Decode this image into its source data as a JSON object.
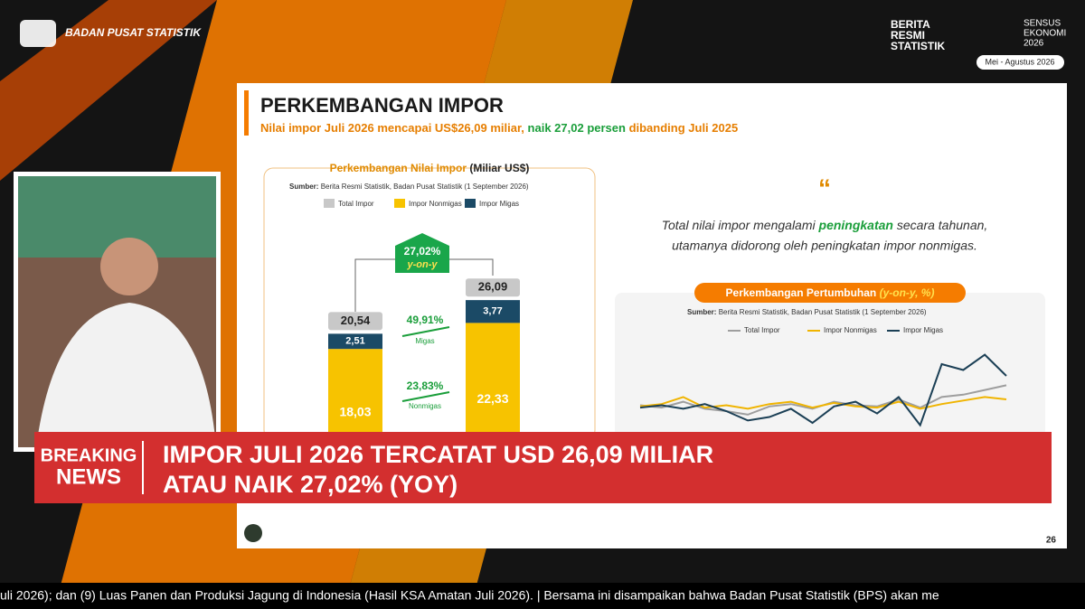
{
  "header": {
    "org": "BADAN PUSAT STATISTIK",
    "brs": [
      "BERITA",
      "RESMI",
      "STATISTIK"
    ],
    "sensus": [
      "SENSUS",
      "EKONOMI",
      "2026"
    ],
    "period": "Mei - Agustus 2026"
  },
  "slide": {
    "title": "PERKEMBANGAN IMPOR",
    "subtitle": [
      "Nilai impor Juli 2026 mencapai US$26,09 miliar, ",
      "naik 27,02 persen",
      " dibanding Juli 2025"
    ],
    "page": "26",
    "quote": [
      "Total nilai impor mengalami ",
      "peningkatan",
      " secara tahunan,",
      "utamanya didorong oleh peningkatan impor nonmigas."
    ],
    "left_chart": {
      "type": "bar",
      "title": "Perkembangan Nilai Impor",
      "unit": "(Miliar US$)",
      "source_label": "Sumber:",
      "source": "Berita Resmi Statistik, Badan Pusat Statistik (1 September 2026)",
      "total": {
        "name": "Total Impor",
        "color": "#c8c8c8",
        "values": [
          20.54,
          26.09
        ],
        "value_labels": [
          "20,54",
          "26,09"
        ]
      },
      "series": [
        {
          "name": "Impor Nonmigas",
          "color": "#f7c300",
          "values": [
            18.03,
            22.33
          ],
          "value_labels": [
            "18,03",
            "22,33"
          ]
        },
        {
          "name": "Impor Migas",
          "color": "#1b4a66",
          "values": [
            2.51,
            3.77
          ],
          "value_labels": [
            "2,51",
            "3,77"
          ]
        }
      ],
      "growth": "27,02%",
      "growth_sub": "y-on-y",
      "migas_growth": "49,91%",
      "migas_label": "Migas",
      "nonmigas_growth": "23,83%",
      "nonmigas_label": "Nonmigas"
    },
    "right_chart": {
      "type": "line",
      "title": "Perkembangan Pertumbuhan ",
      "title_unit": "(y-on-y, %)",
      "source_label": "Sumber:",
      "source": "Berita Resmi Statistik, Badan Pusat Statistik (1 September 2026)",
      "series": [
        {
          "name": "Total Impor",
          "color": "#9e9e9e",
          "values": [
            5,
            3,
            8,
            2,
            0,
            -3,
            4,
            6,
            2,
            8,
            5,
            4,
            10,
            3,
            12,
            14,
            18,
            22
          ]
        },
        {
          "name": "Impor Nonmigas",
          "color": "#f0b400",
          "values": [
            4,
            6,
            12,
            3,
            5,
            2,
            6,
            8,
            3,
            7,
            4,
            3,
            8,
            2,
            6,
            9,
            12,
            10
          ]
        },
        {
          "name": "Impor Migas",
          "color": "#1b3f55",
          "values": [
            3,
            5,
            2,
            6,
            0,
            -8,
            -5,
            2,
            -10,
            4,
            8,
            -2,
            12,
            -12,
            40,
            35,
            48,
            30
          ]
        }
      ]
    }
  },
  "breaking": {
    "label": [
      "BREAKING",
      "NEWS"
    ],
    "headline": [
      "IMPOR JULI 2026 TERCATAT USD 26,09 MILIAR",
      "ATAU NAIK 27,02% (YOY)"
    ]
  },
  "ticker": "uli 2026); dan (9) Luas Panen dan Produksi Jagung di Indonesia (Hasil KSA Amatan Juli 2026). |  Bersama ini disampaikan bahwa Badan Pusat Statistik (BPS) akan me"
}
